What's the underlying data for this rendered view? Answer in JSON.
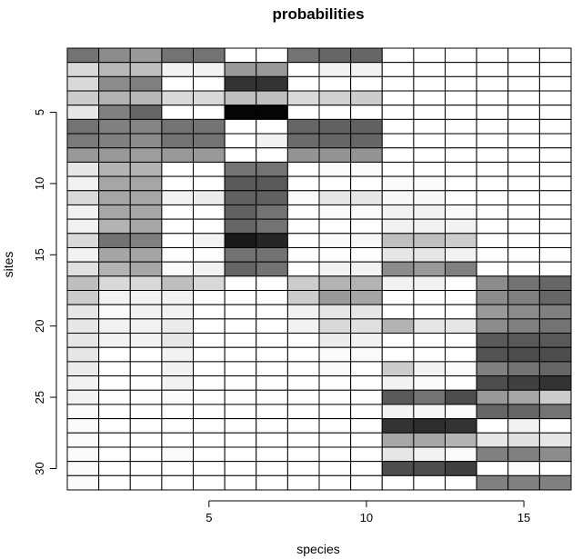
{
  "chart_data": {
    "type": "heatmap",
    "title": "probabilities",
    "xlabel": "species",
    "ylabel": "sites",
    "n_species": 16,
    "n_sites": 31,
    "x_ticks": [
      5,
      10,
      15
    ],
    "y_ticks": [
      5,
      10,
      15,
      20,
      25,
      30
    ],
    "x_tick_labels": [
      "5",
      "10",
      "15"
    ],
    "y_tick_labels": [
      "5",
      "10",
      "15",
      "20",
      "25",
      "30"
    ],
    "value_range": [
      0,
      1
    ],
    "color_scale": {
      "low": "#ffffff",
      "high": "#000000"
    },
    "grid": true,
    "values": [
      [
        0.55,
        0.45,
        0.4,
        0.55,
        0.55,
        0.0,
        0.0,
        0.55,
        0.6,
        0.6,
        0.0,
        0.0,
        0.0,
        0.0,
        0.0,
        0.0
      ],
      [
        0.15,
        0.28,
        0.25,
        0.05,
        0.05,
        0.4,
        0.4,
        0.0,
        0.05,
        0.05,
        0.0,
        0.0,
        0.0,
        0.0,
        0.0,
        0.0
      ],
      [
        0.15,
        0.45,
        0.5,
        0.0,
        0.0,
        0.8,
        0.8,
        0.0,
        0.0,
        0.0,
        0.0,
        0.0,
        0.0,
        0.0,
        0.0,
        0.0
      ],
      [
        0.2,
        0.3,
        0.28,
        0.15,
        0.15,
        0.25,
        0.25,
        0.15,
        0.18,
        0.2,
        0.0,
        0.0,
        0.0,
        0.0,
        0.0,
        0.0
      ],
      [
        0.1,
        0.5,
        0.6,
        0.0,
        0.0,
        0.98,
        0.98,
        0.0,
        0.0,
        0.0,
        0.0,
        0.0,
        0.0,
        0.0,
        0.0,
        0.0
      ],
      [
        0.55,
        0.5,
        0.48,
        0.55,
        0.55,
        0.0,
        0.0,
        0.6,
        0.62,
        0.62,
        0.0,
        0.0,
        0.0,
        0.0,
        0.0,
        0.0
      ],
      [
        0.52,
        0.5,
        0.45,
        0.55,
        0.55,
        0.0,
        0.05,
        0.58,
        0.6,
        0.6,
        0.0,
        0.0,
        0.0,
        0.0,
        0.0,
        0.0
      ],
      [
        0.4,
        0.4,
        0.38,
        0.4,
        0.4,
        0.0,
        0.0,
        0.42,
        0.42,
        0.42,
        0.0,
        0.0,
        0.0,
        0.0,
        0.0,
        0.0
      ],
      [
        0.1,
        0.3,
        0.3,
        0.0,
        0.0,
        0.55,
        0.55,
        0.0,
        0.02,
        0.02,
        0.0,
        0.0,
        0.0,
        0.0,
        0.0,
        0.0
      ],
      [
        0.05,
        0.35,
        0.35,
        0.0,
        0.0,
        0.65,
        0.65,
        0.0,
        0.0,
        0.0,
        0.02,
        0.02,
        0.0,
        0.0,
        0.0,
        0.0
      ],
      [
        0.15,
        0.35,
        0.35,
        0.05,
        0.08,
        0.62,
        0.62,
        0.02,
        0.1,
        0.1,
        0.03,
        0.03,
        0.0,
        0.0,
        0.0,
        0.0
      ],
      [
        0.05,
        0.35,
        0.35,
        0.0,
        0.0,
        0.62,
        0.55,
        0.0,
        0.02,
        0.02,
        0.05,
        0.05,
        0.02,
        0.0,
        0.0,
        0.0
      ],
      [
        0.05,
        0.3,
        0.35,
        0.0,
        0.0,
        0.6,
        0.55,
        0.0,
        0.0,
        0.0,
        0.05,
        0.05,
        0.05,
        0.0,
        0.0,
        0.0
      ],
      [
        0.15,
        0.55,
        0.5,
        0.0,
        0.05,
        0.9,
        0.85,
        0.0,
        0.02,
        0.03,
        0.25,
        0.25,
        0.2,
        0.0,
        0.0,
        0.0
      ],
      [
        0.05,
        0.35,
        0.35,
        0.0,
        0.0,
        0.55,
        0.55,
        0.0,
        0.0,
        0.0,
        0.1,
        0.1,
        0.05,
        0.0,
        0.0,
        0.0
      ],
      [
        0.12,
        0.3,
        0.35,
        0.02,
        0.05,
        0.6,
        0.55,
        0.0,
        0.05,
        0.05,
        0.45,
        0.4,
        0.5,
        0.0,
        0.0,
        0.0
      ],
      [
        0.25,
        0.15,
        0.15,
        0.25,
        0.15,
        0.0,
        0.0,
        0.2,
        0.3,
        0.3,
        0.05,
        0.05,
        0.0,
        0.45,
        0.55,
        0.6
      ],
      [
        0.2,
        0.05,
        0.05,
        0.05,
        0.0,
        0.0,
        0.0,
        0.2,
        0.4,
        0.35,
        0.0,
        0.0,
        0.0,
        0.45,
        0.5,
        0.6
      ],
      [
        0.1,
        0.02,
        0.05,
        0.05,
        0.0,
        0.0,
        0.0,
        0.05,
        0.1,
        0.1,
        0.0,
        0.0,
        0.0,
        0.4,
        0.45,
        0.5
      ],
      [
        0.1,
        0.05,
        0.05,
        0.08,
        0.0,
        0.0,
        0.0,
        0.05,
        0.15,
        0.12,
        0.3,
        0.1,
        0.1,
        0.45,
        0.5,
        0.55
      ],
      [
        0.1,
        0.05,
        0.05,
        0.1,
        0.0,
        0.0,
        0.0,
        0.0,
        0.08,
        0.05,
        0.0,
        0.0,
        0.0,
        0.65,
        0.65,
        0.65
      ],
      [
        0.1,
        0.0,
        0.0,
        0.05,
        0.0,
        0.0,
        0.0,
        0.0,
        0.02,
        0.02,
        0.0,
        0.0,
        0.0,
        0.68,
        0.7,
        0.7
      ],
      [
        0.08,
        0.0,
        0.0,
        0.05,
        0.0,
        0.0,
        0.0,
        0.0,
        0.02,
        0.0,
        0.2,
        0.05,
        0.02,
        0.5,
        0.55,
        0.6
      ],
      [
        0.05,
        0.0,
        0.0,
        0.05,
        0.0,
        0.0,
        0.0,
        0.0,
        0.0,
        0.0,
        0.05,
        0.02,
        0.0,
        0.7,
        0.75,
        0.8
      ],
      [
        0.05,
        0.0,
        0.0,
        0.02,
        0.0,
        0.0,
        0.0,
        0.0,
        0.0,
        0.0,
        0.65,
        0.55,
        0.7,
        0.4,
        0.35,
        0.2
      ],
      [
        0.02,
        0.0,
        0.0,
        0.0,
        0.0,
        0.0,
        0.0,
        0.0,
        0.0,
        0.0,
        0.05,
        0.03,
        0.02,
        0.6,
        0.6,
        0.55
      ],
      [
        0.02,
        0.0,
        0.0,
        0.0,
        0.0,
        0.0,
        0.0,
        0.0,
        0.0,
        0.0,
        0.8,
        0.82,
        0.8,
        0.0,
        0.05,
        0.0
      ],
      [
        0.02,
        0.0,
        0.0,
        0.0,
        0.0,
        0.0,
        0.0,
        0.0,
        0.0,
        0.0,
        0.35,
        0.35,
        0.3,
        0.1,
        0.12,
        0.1
      ],
      [
        0.02,
        0.0,
        0.0,
        0.02,
        0.0,
        0.0,
        0.0,
        0.0,
        0.0,
        0.0,
        0.1,
        0.05,
        0.02,
        0.5,
        0.5,
        0.45
      ],
      [
        0.02,
        0.0,
        0.0,
        0.0,
        0.0,
        0.0,
        0.0,
        0.0,
        0.0,
        0.0,
        0.7,
        0.7,
        0.75,
        0.0,
        0.02,
        0.0
      ],
      [
        0.02,
        0.0,
        0.0,
        0.0,
        0.0,
        0.0,
        0.0,
        0.0,
        0.0,
        0.0,
        0.0,
        0.0,
        0.0,
        0.5,
        0.5,
        0.5
      ]
    ]
  }
}
